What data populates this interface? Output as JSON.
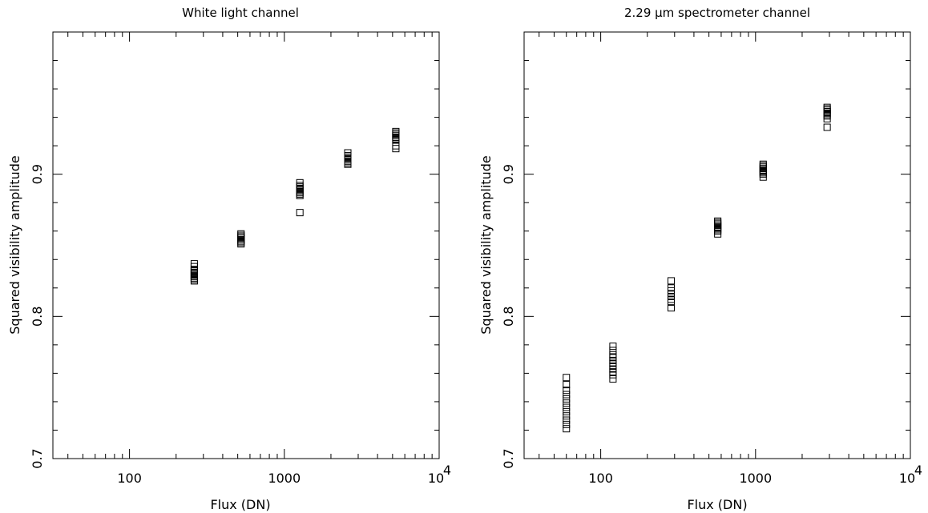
{
  "chart_data": [
    {
      "type": "scatter",
      "title": "White light channel",
      "xlabel": "Flux (DN)",
      "ylabel": "Squared visibility amplitude",
      "xscale": "log",
      "xlim": [
        32,
        10000
      ],
      "ylim": [
        0.7,
        1.0
      ],
      "x_tick_labels": [
        "100",
        "1000",
        "10"
      ],
      "x_tick_exponent": "4",
      "y_tick_labels": [
        "0.7",
        "0.8",
        "0.9"
      ],
      "marker": "open-square",
      "groups": [
        {
          "x": 262,
          "y": [
            0.837,
            0.835,
            0.833,
            0.832,
            0.831,
            0.83,
            0.829,
            0.828,
            0.827,
            0.826,
            0.825
          ]
        },
        {
          "x": 525,
          "y": [
            0.858,
            0.857,
            0.856,
            0.855,
            0.854,
            0.853,
            0.852,
            0.851
          ]
        },
        {
          "x": 1260,
          "y": [
            0.894,
            0.892,
            0.891,
            0.89,
            0.889,
            0.888,
            0.887,
            0.886,
            0.885,
            0.873
          ]
        },
        {
          "x": 2570,
          "y": [
            0.915,
            0.913,
            0.912,
            0.911,
            0.91,
            0.909,
            0.908,
            0.907
          ]
        },
        {
          "x": 5250,
          "y": [
            0.93,
            0.929,
            0.928,
            0.927,
            0.926,
            0.925,
            0.924,
            0.92,
            0.918
          ]
        }
      ]
    },
    {
      "type": "scatter",
      "title": "2.29 μm spectrometer channel",
      "xlabel": "Flux (DN)",
      "ylabel": "Squared visibility amplitude",
      "xscale": "log",
      "xlim": [
        32,
        10000
      ],
      "ylim": [
        0.7,
        1.0
      ],
      "x_tick_labels": [
        "100",
        "1000",
        "10"
      ],
      "x_tick_exponent": "4",
      "y_tick_labels": [
        "0.7",
        "0.8",
        "0.9"
      ],
      "marker": "open-square",
      "groups": [
        {
          "x": 60,
          "y": [
            0.757,
            0.752,
            0.748,
            0.745,
            0.742,
            0.739,
            0.736,
            0.733,
            0.73,
            0.727,
            0.724,
            0.721
          ]
        },
        {
          "x": 120,
          "y": [
            0.779,
            0.776,
            0.773,
            0.771,
            0.769,
            0.767,
            0.765,
            0.763,
            0.761,
            0.759,
            0.756
          ]
        },
        {
          "x": 285,
          "y": [
            0.825,
            0.82,
            0.818,
            0.816,
            0.814,
            0.812,
            0.81,
            0.806
          ]
        },
        {
          "x": 570,
          "y": [
            0.867,
            0.866,
            0.865,
            0.864,
            0.863,
            0.862,
            0.861,
            0.86,
            0.858
          ]
        },
        {
          "x": 1120,
          "y": [
            0.907,
            0.906,
            0.905,
            0.904,
            0.903,
            0.902,
            0.901,
            0.9,
            0.898
          ]
        },
        {
          "x": 2900,
          "y": [
            0.947,
            0.946,
            0.945,
            0.944,
            0.943,
            0.942,
            0.941,
            0.939,
            0.933
          ]
        }
      ]
    }
  ]
}
